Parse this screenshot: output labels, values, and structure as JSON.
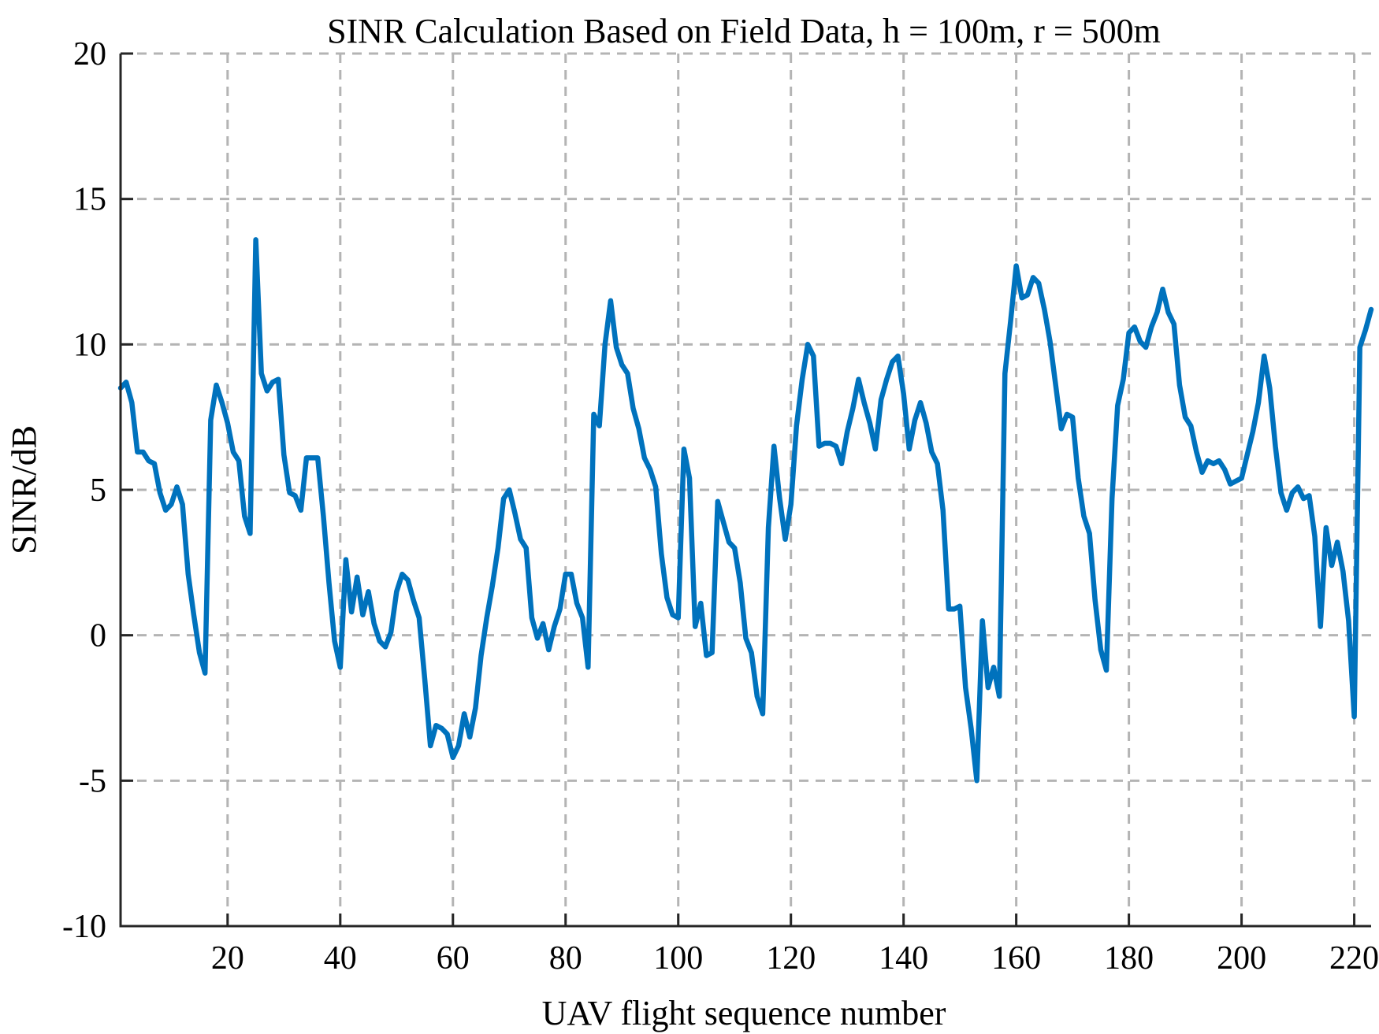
{
  "chart_data": {
    "type": "line",
    "title": "SINR Calculation Based on Field Data, h = 100m, r = 500m",
    "xlabel": "UAV flight sequence number",
    "ylabel": "SINR/dB",
    "xlim": [
      1,
      223
    ],
    "ylim": [
      -10,
      20
    ],
    "xticks": [
      20,
      40,
      60,
      80,
      100,
      120,
      140,
      160,
      180,
      200,
      220
    ],
    "xtick_labels": [
      "20",
      "40",
      "60",
      "80",
      "100",
      "120",
      "140",
      "160",
      "180",
      "200",
      "220"
    ],
    "yticks": [
      -10,
      -5,
      0,
      5,
      10,
      15,
      20
    ],
    "ytick_labels": [
      "-10",
      "-5",
      "0",
      "5",
      "10",
      "15",
      "20"
    ],
    "grid": true,
    "line_color": "#0072BD",
    "series": [
      {
        "x": [
          1,
          2,
          3,
          4,
          5,
          6,
          7,
          8,
          9,
          10,
          11,
          12,
          13,
          14,
          15,
          16,
          17,
          18,
          19,
          20,
          21,
          22,
          23,
          24,
          25,
          26,
          27,
          28,
          29,
          30,
          31,
          32,
          33,
          34,
          35,
          36,
          37,
          38,
          39,
          40,
          41,
          42,
          43,
          44,
          45,
          46,
          47,
          48,
          49,
          50,
          51,
          52,
          53,
          54,
          55,
          56,
          57,
          58,
          59,
          60,
          61,
          62,
          63,
          64,
          65,
          66,
          67,
          68,
          69,
          70,
          71,
          72,
          73,
          74,
          75,
          76,
          77,
          78,
          79,
          80,
          81,
          82,
          83,
          84,
          85,
          86,
          87,
          88,
          89,
          90,
          91,
          92,
          93,
          94,
          95,
          96,
          97,
          98,
          99,
          100,
          101,
          102,
          103,
          104,
          105,
          106,
          107,
          108,
          109,
          110,
          111,
          112,
          113,
          114,
          115,
          116,
          117,
          118,
          119,
          120,
          121,
          122,
          123,
          124,
          125,
          126,
          127,
          128,
          129,
          130,
          131,
          132,
          133,
          134,
          135,
          136,
          137,
          138,
          139,
          140,
          141,
          142,
          143,
          144,
          145,
          146,
          147,
          148,
          149,
          150,
          151,
          152,
          153,
          154,
          155,
          156,
          157,
          158,
          159,
          160,
          161,
          162,
          163,
          164,
          165,
          166,
          167,
          168,
          169,
          170,
          171,
          172,
          173,
          174,
          175,
          176,
          177,
          178,
          179,
          180,
          181,
          182,
          183,
          184,
          185,
          186,
          187,
          188,
          189,
          190,
          191,
          192,
          193,
          194,
          195,
          196,
          197,
          198,
          199,
          200,
          201,
          202,
          203,
          204,
          205,
          206,
          207,
          208,
          209,
          210,
          211,
          212,
          213,
          214,
          215,
          216,
          217,
          218,
          219,
          220,
          221,
          222,
          223
        ],
        "y": [
          8.5,
          8.7,
          8.0,
          6.3,
          6.3,
          6.0,
          5.9,
          4.9,
          4.3,
          4.5,
          5.1,
          4.5,
          2.1,
          0.7,
          -0.6,
          -1.3,
          7.4,
          8.6,
          8.0,
          7.3,
          6.3,
          6.0,
          4.1,
          3.5,
          13.6,
          9.0,
          8.4,
          8.7,
          8.8,
          6.2,
          4.9,
          4.8,
          4.3,
          6.1,
          6.1,
          6.1,
          4.1,
          1.8,
          -0.2,
          -1.1,
          2.6,
          0.8,
          2.0,
          0.7,
          1.5,
          0.4,
          -0.2,
          -0.4,
          0.1,
          1.5,
          2.1,
          1.9,
          1.2,
          0.6,
          -1.5,
          -3.8,
          -3.1,
          -3.2,
          -3.4,
          -4.2,
          -3.8,
          -2.7,
          -3.5,
          -2.5,
          -0.7,
          0.6,
          1.7,
          3.0,
          4.7,
          5.0,
          4.2,
          3.3,
          3.0,
          0.6,
          -0.1,
          0.4,
          -0.5,
          0.3,
          0.9,
          2.1,
          2.1,
          1.1,
          0.6,
          -1.1,
          7.6,
          7.2,
          10.0,
          11.5,
          9.9,
          9.3,
          9.0,
          7.8,
          7.1,
          6.1,
          5.7,
          5.1,
          2.8,
          1.3,
          0.7,
          0.6,
          6.4,
          5.4,
          0.3,
          1.1,
          -0.7,
          -0.6,
          4.6,
          3.9,
          3.2,
          3.0,
          1.8,
          -0.1,
          -0.6,
          -2.1,
          -2.7,
          3.7,
          6.5,
          4.7,
          3.3,
          4.5,
          7.2,
          8.8,
          10.0,
          9.6,
          6.5,
          6.6,
          6.6,
          6.5,
          5.9,
          7.0,
          7.8,
          8.8,
          8.0,
          7.3,
          6.4,
          8.1,
          8.8,
          9.4,
          9.6,
          8.3,
          6.4,
          7.4,
          8.0,
          7.3,
          6.3,
          5.9,
          4.3,
          0.9,
          0.9,
          1.0,
          -1.8,
          -3.2,
          -5.0,
          0.5,
          -1.8,
          -1.1,
          -2.1,
          9.0,
          10.8,
          12.7,
          11.6,
          11.7,
          12.3,
          12.1,
          11.2,
          10.1,
          8.6,
          7.1,
          7.6,
          7.5,
          5.4,
          4.1,
          3.5,
          1.2,
          -0.5,
          -1.2,
          4.7,
          7.9,
          8.8,
          10.4,
          10.6,
          10.1,
          9.9,
          10.6,
          11.1,
          11.9,
          11.1,
          10.7,
          8.6,
          7.5,
          7.2,
          6.3,
          5.6,
          6.0,
          5.9,
          6.0,
          5.7,
          5.2,
          5.3,
          5.4,
          6.2,
          7.0,
          8.0,
          9.6,
          8.5,
          6.5,
          4.9,
          4.3,
          4.9,
          5.1,
          4.7,
          4.8,
          3.4,
          0.3,
          3.7,
          2.4,
          3.2,
          2.2,
          0.5,
          -2.8,
          9.9,
          10.5,
          11.2
        ]
      }
    ]
  }
}
